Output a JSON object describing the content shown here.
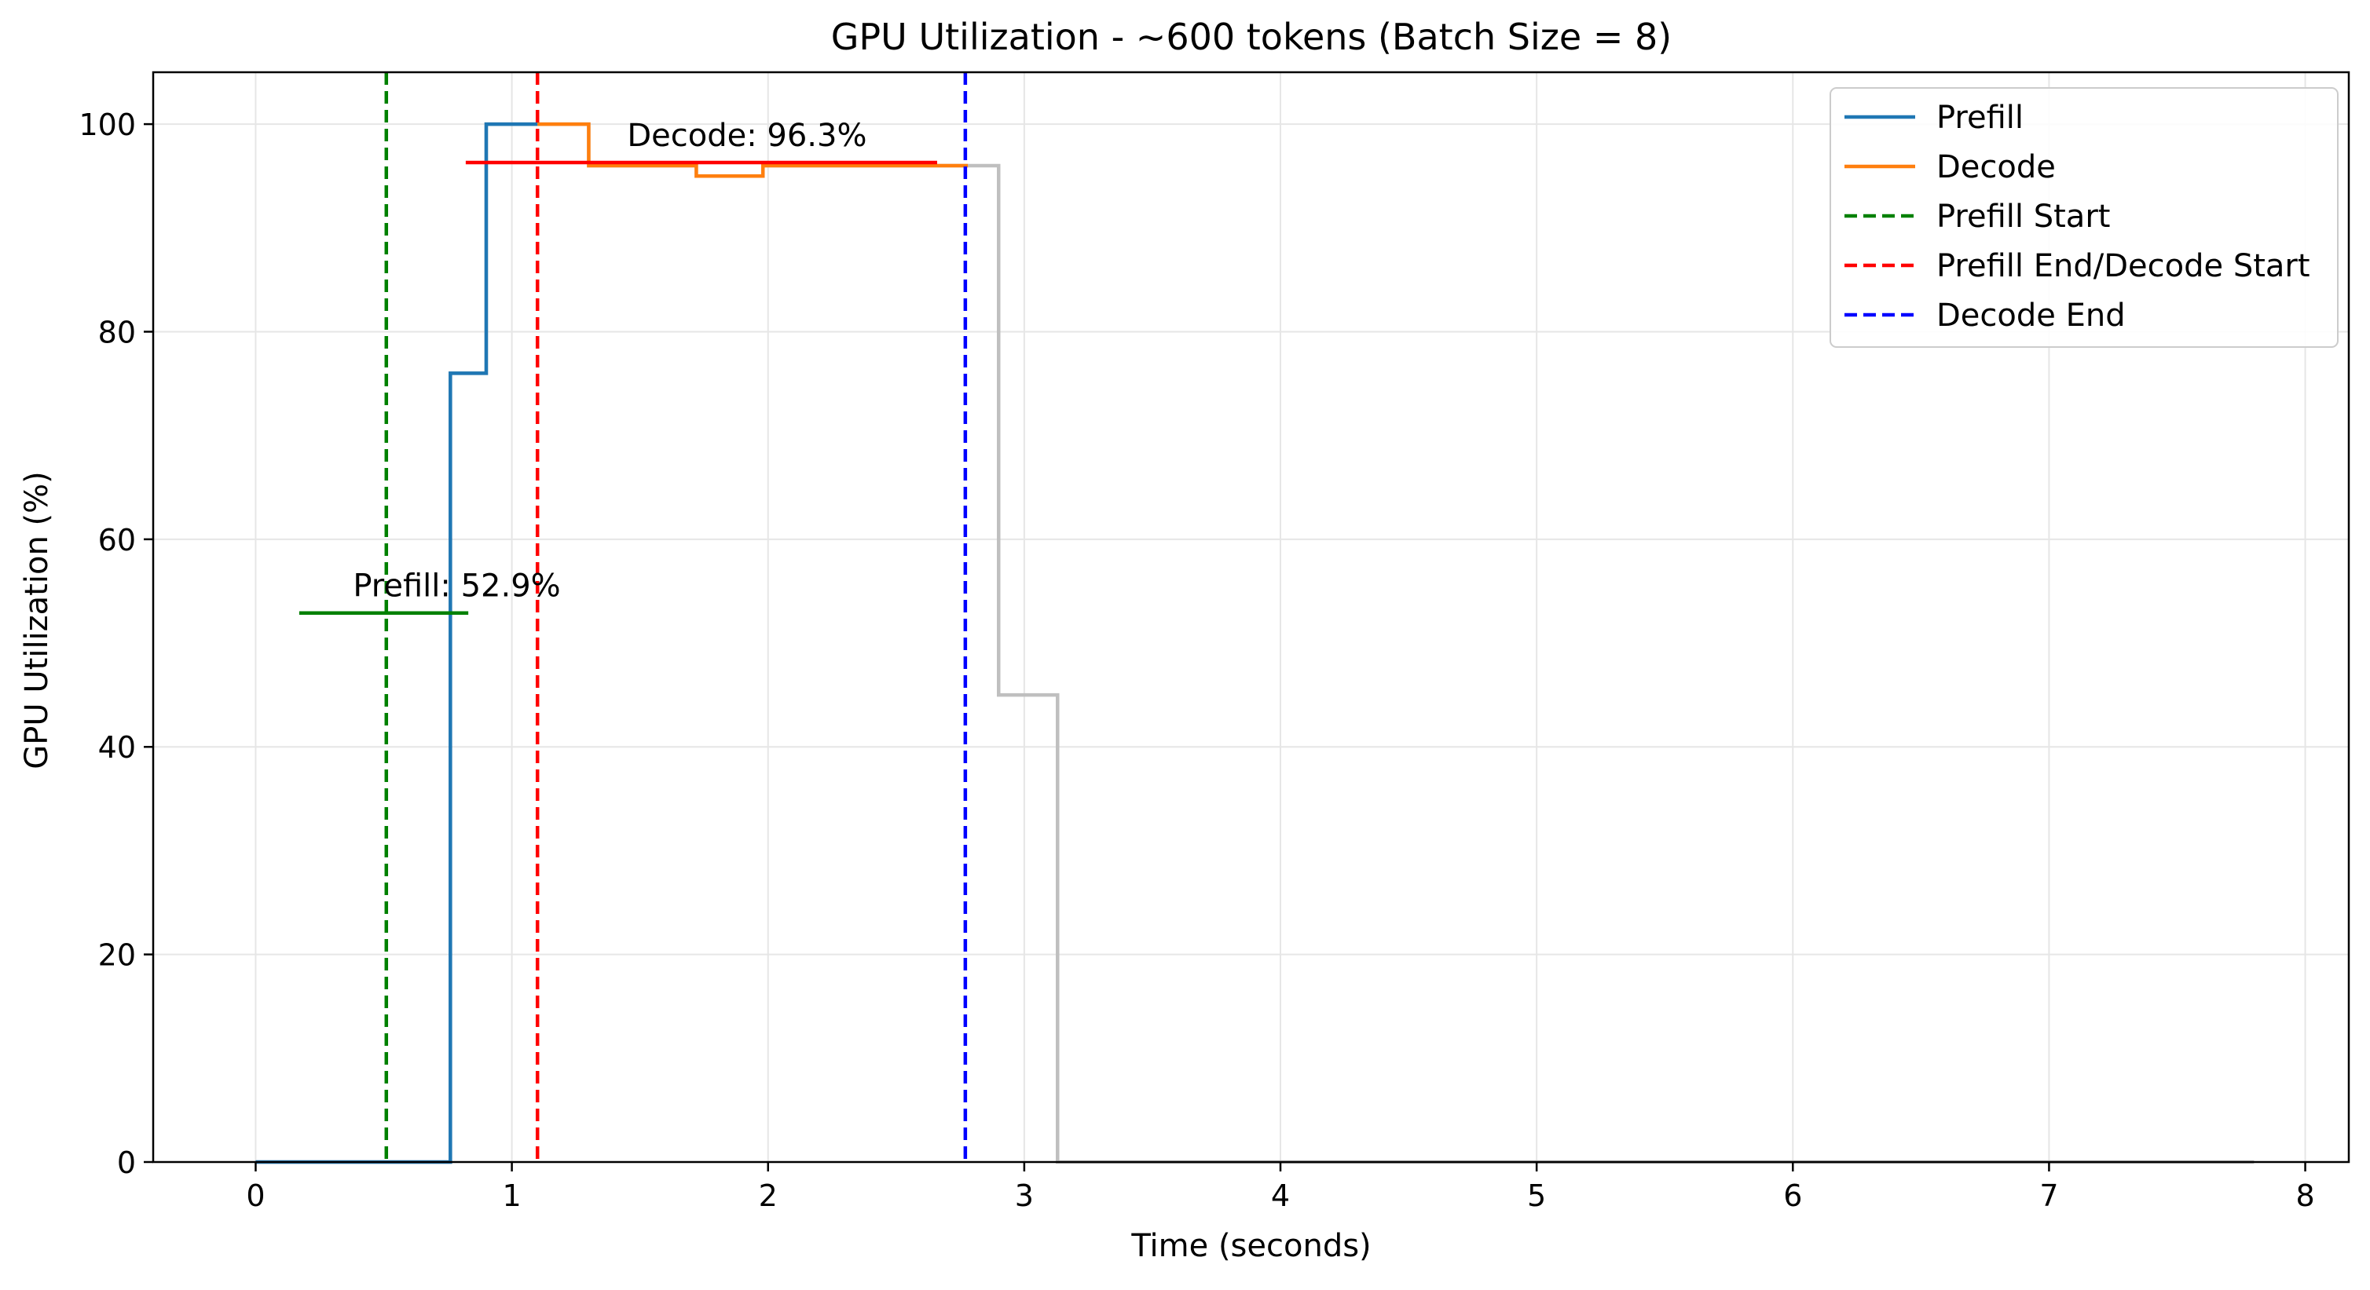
{
  "chart_data": {
    "type": "line",
    "title": "GPU Utilization - ~600 tokens (Batch Size = 8)",
    "xlabel": "Time (seconds)",
    "ylabel": "GPU Utilization (%)",
    "xlim": [
      -0.4,
      8.17
    ],
    "ylim": [
      0,
      105
    ],
    "xticks": [
      0,
      1,
      2,
      3,
      4,
      5,
      6,
      7,
      8
    ],
    "yticks": [
      0,
      20,
      40,
      60,
      80,
      100
    ],
    "grid": true,
    "legend_position": "top-right",
    "series": [
      {
        "name": "",
        "color": "#bfbfbf",
        "style": "step",
        "x": [
          0,
          0.51,
          0.76,
          0.9,
          1.12,
          1.3,
          1.72,
          1.98,
          2.78,
          2.9,
          3.13,
          7.8
        ],
        "y": [
          0,
          0,
          76,
          100,
          100,
          96,
          95,
          96,
          96,
          45,
          0,
          0
        ]
      },
      {
        "name": "Prefill",
        "color": "#1f77b4",
        "style": "step",
        "x": [
          0,
          0.51,
          0.76,
          0.9,
          1.1
        ],
        "y": [
          0,
          0,
          76,
          100,
          100
        ]
      },
      {
        "name": "Decode",
        "color": "#ff7f0e",
        "style": "step",
        "x": [
          1.1,
          1.3,
          1.72,
          1.98,
          2.78
        ],
        "y": [
          100,
          96,
          95,
          96,
          96
        ]
      }
    ],
    "vlines": [
      {
        "name": "Prefill Start",
        "x": 0.51,
        "color": "#008000"
      },
      {
        "name": "Prefill End/Decode Start",
        "x": 1.1,
        "color": "#ff0000"
      },
      {
        "name": "Decode End",
        "x": 2.77,
        "color": "#0000ff"
      }
    ],
    "mean_lines": [
      {
        "x0": 0.17,
        "x1": 0.83,
        "y": 52.9,
        "color": "#008000"
      },
      {
        "x0": 0.82,
        "x1": 2.66,
        "y": 96.3,
        "color": "#ff0000"
      }
    ],
    "annotations": [
      {
        "text": "Prefill: 52.9%",
        "x": 0.38,
        "y": 54.5
      },
      {
        "text": "Decode: 96.3%",
        "x": 1.45,
        "y": 97.9
      }
    ],
    "legend": [
      {
        "label": "Prefill",
        "color": "#1f77b4",
        "dash": false
      },
      {
        "label": "Decode",
        "color": "#ff7f0e",
        "dash": false
      },
      {
        "label": "Prefill Start",
        "color": "#008000",
        "dash": true
      },
      {
        "label": "Prefill End/Decode Start",
        "color": "#ff0000",
        "dash": true
      },
      {
        "label": "Decode End",
        "color": "#0000ff",
        "dash": true
      }
    ]
  }
}
